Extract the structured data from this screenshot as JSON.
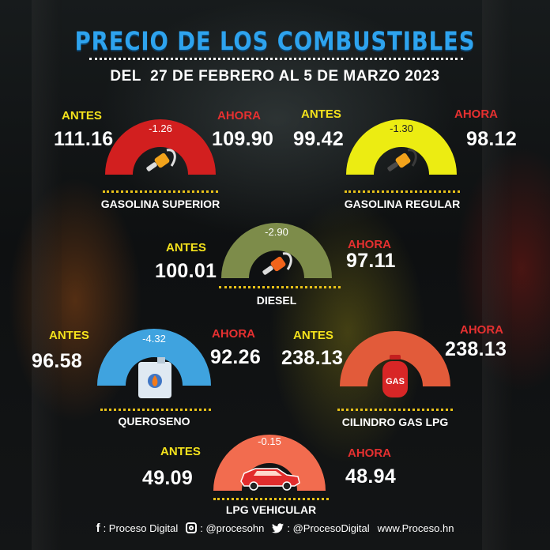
{
  "header": {
    "title": "PRECIO DE LOS COMBUSTIBLES",
    "subtitle": "DEL  27 DE FEBRERO AL 5 DE MARZO 2023"
  },
  "labels": {
    "before": "ANTES",
    "now": "AHORA"
  },
  "fuels": [
    {
      "name": "GASOLINA SUPERIOR",
      "before": "111.16",
      "now": "109.90",
      "change": "-1.26",
      "color": "#d21f1f",
      "icon": "fuel-nozzle-icon"
    },
    {
      "name": "GASOLINA REGULAR",
      "before": "99.42",
      "now": "98.12",
      "change": "-1.30",
      "color": "#ecec12",
      "icon": "fuel-nozzle-icon"
    },
    {
      "name": "DIESEL",
      "before": "100.01",
      "now": "97.11",
      "change": "-2.90",
      "color": "#7d8c4a",
      "icon": "fuel-nozzle-icon"
    },
    {
      "name": "QUEROSENO",
      "before": "96.58",
      "now": "92.26",
      "change": "-4.32",
      "color": "#3fa3df",
      "icon": "jerrycan-icon"
    },
    {
      "name": "CILINDRO GAS LPG",
      "before": "238.13",
      "now": "238.13",
      "change": "",
      "color": "#e25b3a",
      "icon": "gas-cylinder-icon",
      "icon_text": "GAS"
    },
    {
      "name": "LPG VEHICULAR",
      "before": "49.09",
      "now": "48.94",
      "change": "-0.15",
      "color": "#f26c4f",
      "icon": "car-icon"
    }
  ],
  "footer": {
    "facebook": ": Proceso Digital",
    "instagram": ": @procesohn",
    "twitter": ": @ProcesoDigital",
    "website": "www.Proceso.hn"
  }
}
